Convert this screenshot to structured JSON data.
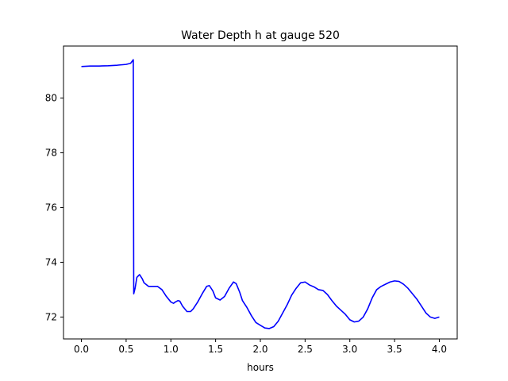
{
  "chart_data": {
    "type": "line",
    "title": "Water Depth h at gauge 520",
    "xlabel": "hours",
    "ylabel": "",
    "xlim": [
      -0.2,
      4.2
    ],
    "ylim": [
      71.2,
      81.9
    ],
    "xticks": [
      0.0,
      0.5,
      1.0,
      1.5,
      2.0,
      2.5,
      3.0,
      3.5,
      4.0
    ],
    "xtick_labels": [
      "0.0",
      "0.5",
      "1.0",
      "1.5",
      "2.0",
      "2.5",
      "3.0",
      "3.5",
      "4.0"
    ],
    "yticks": [
      72,
      74,
      76,
      78,
      80
    ],
    "ytick_labels": [
      "72",
      "74",
      "76",
      "78",
      "80"
    ],
    "grid": false,
    "series": [
      {
        "color": "#0000ff",
        "x": [
          0.0,
          0.1,
          0.2,
          0.3,
          0.4,
          0.5,
          0.55,
          0.58,
          0.585,
          0.6,
          0.62,
          0.65,
          0.68,
          0.7,
          0.75,
          0.8,
          0.85,
          0.9,
          0.95,
          1.0,
          1.03,
          1.05,
          1.08,
          1.1,
          1.13,
          1.18,
          1.22,
          1.25,
          1.3,
          1.35,
          1.4,
          1.43,
          1.47,
          1.5,
          1.55,
          1.6,
          1.65,
          1.7,
          1.73,
          1.77,
          1.8,
          1.85,
          1.9,
          1.95,
          2.0,
          2.05,
          2.1,
          2.15,
          2.2,
          2.25,
          2.3,
          2.35,
          2.4,
          2.45,
          2.5,
          2.55,
          2.6,
          2.65,
          2.7,
          2.75,
          2.8,
          2.85,
          2.9,
          2.95,
          3.0,
          3.05,
          3.1,
          3.15,
          3.2,
          3.25,
          3.3,
          3.35,
          3.4,
          3.45,
          3.5,
          3.55,
          3.6,
          3.65,
          3.7,
          3.75,
          3.8,
          3.85,
          3.9,
          3.95,
          4.0
        ],
        "y": [
          81.15,
          81.17,
          81.17,
          81.18,
          81.2,
          81.23,
          81.27,
          81.4,
          72.85,
          73.05,
          73.45,
          73.55,
          73.4,
          73.25,
          73.12,
          73.12,
          73.12,
          73.0,
          72.75,
          72.55,
          72.5,
          72.55,
          72.6,
          72.58,
          72.4,
          72.2,
          72.2,
          72.3,
          72.55,
          72.85,
          73.12,
          73.15,
          72.95,
          72.7,
          72.62,
          72.75,
          73.05,
          73.28,
          73.22,
          72.9,
          72.6,
          72.35,
          72.05,
          71.8,
          71.7,
          71.6,
          71.58,
          71.65,
          71.85,
          72.15,
          72.45,
          72.8,
          73.05,
          73.25,
          73.28,
          73.17,
          73.1,
          73.0,
          72.97,
          72.82,
          72.6,
          72.4,
          72.25,
          72.1,
          71.9,
          71.82,
          71.85,
          72.0,
          72.3,
          72.7,
          73.0,
          73.12,
          73.2,
          73.28,
          73.32,
          73.3,
          73.2,
          73.05,
          72.85,
          72.65,
          72.4,
          72.15,
          72.0,
          71.95,
          72.0
        ]
      }
    ]
  }
}
